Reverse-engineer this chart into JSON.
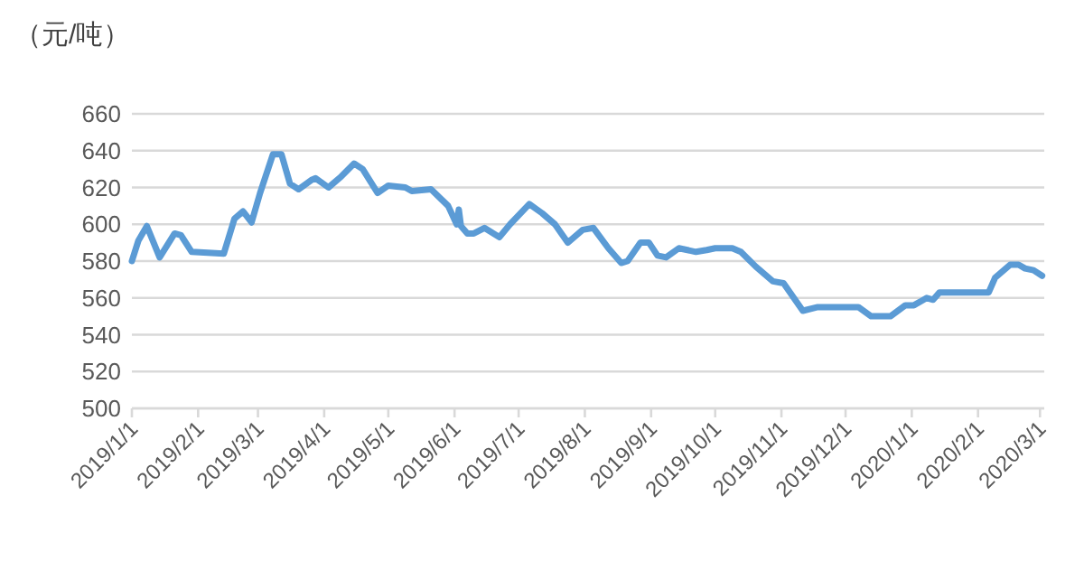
{
  "chart_data": {
    "type": "line",
    "ylabel": "（元/吨）",
    "x": [
      "2019-01-01",
      "2019-01-04",
      "2019-01-08",
      "2019-01-14",
      "2019-01-21",
      "2019-01-24",
      "2019-01-29",
      "2019-02-13",
      "2019-02-18",
      "2019-02-22",
      "2019-02-26",
      "2019-03-02",
      "2019-03-08",
      "2019-03-12",
      "2019-03-16",
      "2019-03-20",
      "2019-03-26",
      "2019-03-28",
      "2019-04-03",
      "2019-04-09",
      "2019-04-15",
      "2019-04-19",
      "2019-04-26",
      "2019-05-01",
      "2019-05-09",
      "2019-05-12",
      "2019-05-21",
      "2019-05-29",
      "2019-06-02",
      "2019-06-03",
      "2019-06-04",
      "2019-06-07",
      "2019-06-10",
      "2019-06-15",
      "2019-06-22",
      "2019-06-27",
      "2019-07-06",
      "2019-07-12",
      "2019-07-18",
      "2019-07-24",
      "2019-07-31",
      "2019-08-05",
      "2019-08-12",
      "2019-08-18",
      "2019-08-21",
      "2019-08-27",
      "2019-08-31",
      "2019-09-04",
      "2019-09-08",
      "2019-09-14",
      "2019-09-22",
      "2019-09-27",
      "2019-10-01",
      "2019-10-09",
      "2019-10-13",
      "2019-10-20",
      "2019-10-28",
      "2019-11-02",
      "2019-11-11",
      "2019-11-18",
      "2019-12-07",
      "2019-12-13",
      "2019-12-22",
      "2019-12-29",
      "2020-01-02",
      "2020-01-08",
      "2020-01-11",
      "2020-01-14",
      "2020-02-06",
      "2020-02-09",
      "2020-02-16",
      "2020-02-20",
      "2020-02-23",
      "2020-02-27",
      "2020-03-02"
    ],
    "series": [
      {
        "color": "#5b9bd5",
        "values": [
          580,
          591,
          599,
          582,
          595,
          594,
          585,
          584,
          603,
          607,
          601,
          617,
          638,
          638,
          622,
          619,
          624,
          625,
          620,
          626,
          633,
          630,
          617,
          621,
          620,
          618,
          619,
          610,
          600,
          608,
          599,
          595,
          595,
          598,
          593,
          600,
          611,
          606,
          600,
          590,
          597,
          598,
          587,
          579,
          580,
          590,
          590,
          583,
          582,
          587,
          585,
          586,
          587,
          587,
          585,
          577,
          569,
          568,
          553,
          555,
          555,
          550,
          550,
          556,
          556,
          560,
          559,
          563,
          563,
          571,
          578,
          578,
          576,
          575,
          572
        ]
      }
    ],
    "xlim": [
      "2019-01-01",
      "2020-03-03"
    ],
    "xticks": [
      {
        "value": "2019-01-01",
        "label": "2019/1/1"
      },
      {
        "value": "2019-02-01",
        "label": "2019/2/1"
      },
      {
        "value": "2019-03-01",
        "label": "2019/3/1"
      },
      {
        "value": "2019-04-01",
        "label": "2019/4/1"
      },
      {
        "value": "2019-05-01",
        "label": "2019/5/1"
      },
      {
        "value": "2019-06-01",
        "label": "2019/6/1"
      },
      {
        "value": "2019-07-01",
        "label": "2019/7/1"
      },
      {
        "value": "2019-08-01",
        "label": "2019/8/1"
      },
      {
        "value": "2019-09-01",
        "label": "2019/9/1"
      },
      {
        "value": "2019-10-01",
        "label": "2019/10/1"
      },
      {
        "value": "2019-11-01",
        "label": "2019/11/1"
      },
      {
        "value": "2019-12-01",
        "label": "2019/12/1"
      },
      {
        "value": "2020-01-01",
        "label": "2020/1/1"
      },
      {
        "value": "2020-02-01",
        "label": "2020/2/1"
      },
      {
        "value": "2020-03-01",
        "label": "2020/3/1"
      }
    ],
    "ylim": [
      500,
      660
    ],
    "yticks": [
      500,
      520,
      540,
      560,
      580,
      600,
      620,
      640,
      660
    ],
    "grid": "y",
    "marker": "none",
    "line_style": "solid"
  }
}
